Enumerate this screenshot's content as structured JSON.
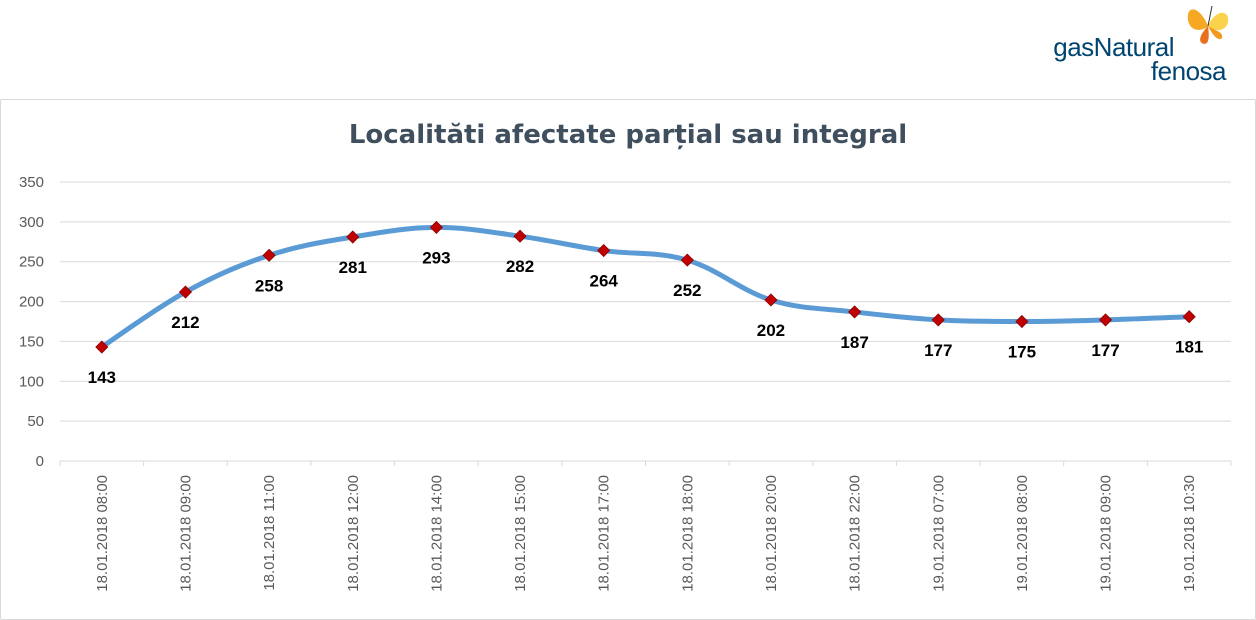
{
  "logo": {
    "line1": "gasNatural",
    "line2": "fenosa"
  },
  "colors": {
    "line": "#5b9bd5",
    "marker": "#c00000",
    "grid": "#d9d9d9",
    "title": "#404f5e",
    "brand": "#004571"
  },
  "chart_data": {
    "type": "line",
    "title": "Localităti afectate parțial sau integral",
    "xlabel": "",
    "ylabel": "",
    "ylim": [
      0,
      350
    ],
    "yticks": [
      0,
      50,
      100,
      150,
      200,
      250,
      300,
      350
    ],
    "grid": true,
    "categories": [
      "18.01.2018 08:00",
      "18.01.2018 09:00",
      "18.01.2018 11:00",
      "18.01.2018 12:00",
      "18.01.2018 14:00",
      "18.01.2018 15:00",
      "18.01.2018 17:00",
      "18.01.2018 18:00",
      "18.01.2018 20:00",
      "18.01.2018 22:00",
      "19.01.2018 07:00",
      "19.01.2018 08:00",
      "19.01.2018 09:00",
      "19.01.2018 10:30"
    ],
    "series": [
      {
        "values": [
          143,
          212,
          258,
          281,
          293,
          282,
          264,
          252,
          202,
          187,
          177,
          175,
          177,
          181
        ]
      }
    ]
  }
}
